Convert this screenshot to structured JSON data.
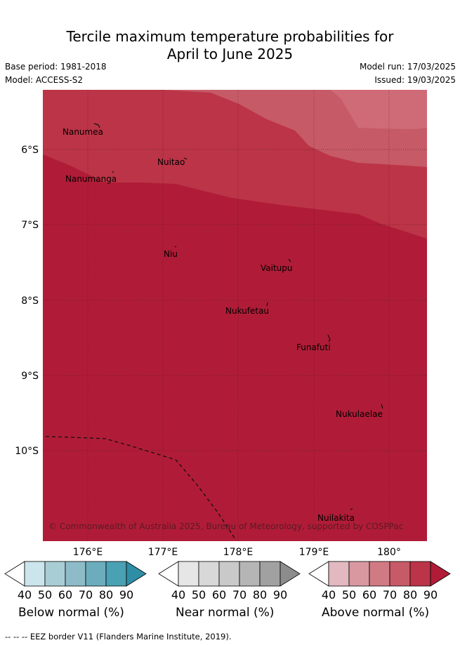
{
  "title_line1": "Tercile maximum temperature probabilities for",
  "title_line2": "April to June 2025",
  "base_period": "Base period: 1981-2018",
  "model": "Model: ACCESS-S2",
  "model_run": "Model run: 17/03/2025",
  "issued": "Issued: 19/03/2025",
  "lat_labels": [
    "6°S",
    "7°S",
    "8°S",
    "9°S",
    "10°S"
  ],
  "lon_labels": [
    "176°E",
    "177°E",
    "178°E",
    "179°E",
    "180°"
  ],
  "places": [
    {
      "name": "Nanumea"
    },
    {
      "name": "Nuitao"
    },
    {
      "name": "Nanumanga"
    },
    {
      "name": "Niu"
    },
    {
      "name": "Vaitupu"
    },
    {
      "name": "Nukufetau"
    },
    {
      "name": "Funafuti"
    },
    {
      "name": "Nukulaelae"
    },
    {
      "name": "Nuilakita"
    }
  ],
  "copyright": "© Commonwealth of Australia 2025, Bureau of Meteorology, supported by COSPPac",
  "legend": {
    "ticks": [
      "40",
      "50",
      "60",
      "70",
      "80",
      "90"
    ],
    "below": {
      "label": "Below normal (%)",
      "colors": [
        "#ffffff",
        "#cce5ec",
        "#a9cdd4",
        "#8dbcc8",
        "#6cadbd",
        "#4aa1b3",
        "#2e8ea5"
      ]
    },
    "near": {
      "label": "Near normal (%)",
      "colors": [
        "#ffffff",
        "#e6e6e6",
        "#d8d8d8",
        "#c9c9c9",
        "#b5b5b5",
        "#a1a1a1",
        "#8c8c8c"
      ]
    },
    "above": {
      "label": "Above normal (%)",
      "colors": [
        "#ffffff",
        "#e2b9c0",
        "#d9989f",
        "#d07a84",
        "#c65a67",
        "#bc3447",
        "#b01c37"
      ]
    }
  },
  "footnote": "--  --  -- EEZ border V11 (Flanders Marine Institute, 2019).",
  "colors": {
    "above_80": "#bc3447",
    "above_70": "#c65a67",
    "above_60": "#ce6b77",
    "above_90": "#b01c37"
  }
}
